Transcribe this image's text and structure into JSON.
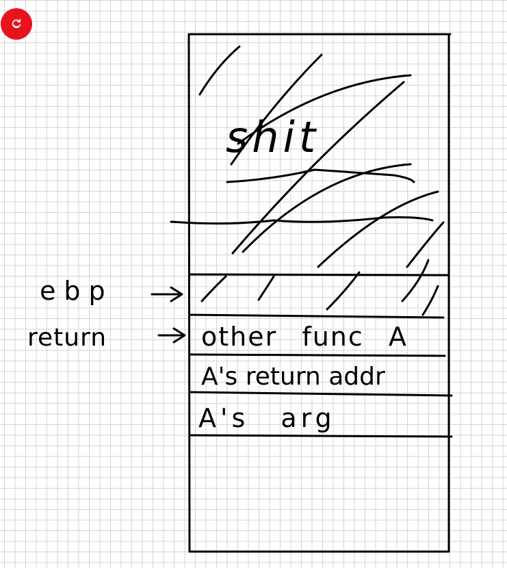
{
  "refresh_button": {
    "icon": "refresh-icon",
    "color": "#e8131c"
  },
  "labels": {
    "ebp": "ebp",
    "return": "return"
  },
  "stack": {
    "overwritten_word": "shit",
    "slots": [
      "other func A",
      "A's return addr",
      "A's arg"
    ]
  },
  "ink_color": "#000000"
}
